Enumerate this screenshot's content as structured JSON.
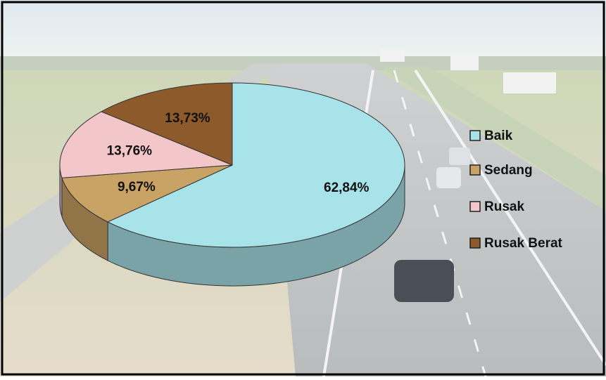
{
  "chart_data": {
    "type": "pie",
    "categories": [
      "Baik",
      "Sedang",
      "Rusak",
      "Rusak Berat"
    ],
    "values": [
      62.84,
      9.67,
      13.76,
      13.73
    ],
    "value_labels": [
      "62,84%",
      "9,67%",
      "13,76%",
      "13,73%"
    ],
    "colors": [
      "#a9e3ea",
      "#c9a266",
      "#f3c6ca",
      "#8d5a2c"
    ],
    "legend": "right"
  }
}
